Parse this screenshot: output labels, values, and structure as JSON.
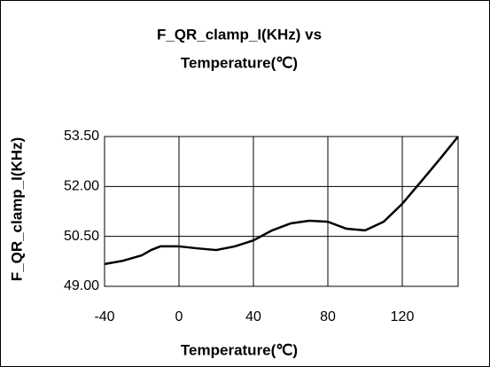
{
  "chart_data": {
    "type": "line",
    "title": [
      "F_QR_clamp_I(KHz) vs",
      "Temperature(℃)"
    ],
    "xlabel": "Temperature(℃)",
    "ylabel": "F_QR_clamp_I(KHz)",
    "x": [
      -40,
      -30,
      -20,
      -15,
      -10,
      0,
      10,
      20,
      30,
      40,
      50,
      60,
      70,
      80,
      90,
      100,
      110,
      120,
      130,
      140,
      150
    ],
    "series": [
      {
        "color": "#000000",
        "values": [
          49.67,
          49.77,
          49.93,
          50.09,
          50.2,
          50.2,
          50.14,
          50.09,
          50.2,
          50.38,
          50.68,
          50.89,
          50.97,
          50.94,
          50.73,
          50.68,
          50.94,
          51.48,
          52.14,
          52.81,
          53.5
        ]
      }
    ],
    "xlim": [
      -40,
      150
    ],
    "ylim": [
      49,
      53.5
    ],
    "xticks": [
      -40,
      0,
      40,
      80,
      120
    ],
    "yticks": [
      {
        "value": 49,
        "label": "49.00"
      },
      {
        "value": 50.5,
        "label": "50.50"
      },
      {
        "value": 52,
        "label": "52.00"
      },
      {
        "value": 53.5,
        "label": "53.50"
      }
    ],
    "grid": true
  }
}
